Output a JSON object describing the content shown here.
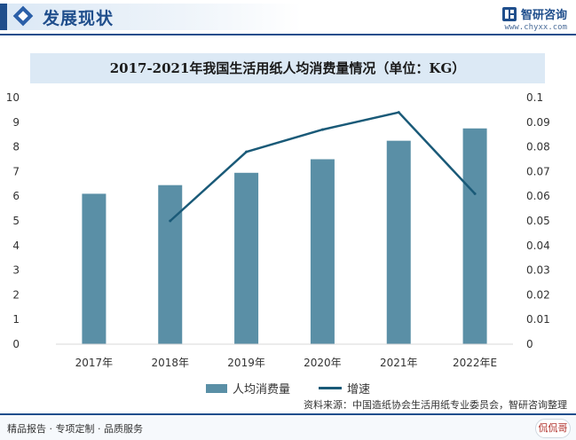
{
  "header": {
    "title": "发展现状"
  },
  "brand": {
    "name": "智研咨询",
    "url": "www.chyxx.com"
  },
  "footer": {
    "left_text": "精品报告 · 专项定制 · 品质服务",
    "source_text": "资料来源：中国造纸协会生活用纸专业委员会，智研咨询整理",
    "badge_text": "侃侃哥"
  },
  "colors": {
    "bar": "#5a8fa6",
    "line": "#1a5a78",
    "accent": "#1f4e8c"
  },
  "chart_data": {
    "type": "bar",
    "title": "2017-2021年我国生活用纸人均消费量情况（单位：KG）",
    "categories": [
      "2017年",
      "2018年",
      "2019年",
      "2020年",
      "2021年",
      "2022年E"
    ],
    "series": [
      {
        "name": "人均消费量",
        "type": "bar",
        "axis": "left",
        "values": [
          6.1,
          6.45,
          6.95,
          7.5,
          8.25,
          8.75
        ]
      },
      {
        "name": "增速",
        "type": "line",
        "axis": "right",
        "values": [
          null,
          0.05,
          0.078,
          0.087,
          0.094,
          0.061
        ]
      }
    ],
    "ylim_left": [
      0,
      10
    ],
    "yticks_left": [
      "0",
      "1",
      "2",
      "3",
      "4",
      "5",
      "6",
      "7",
      "8",
      "9",
      "10"
    ],
    "ylim_right": [
      0,
      0.1
    ],
    "yticks_right": [
      "0",
      "0.01",
      "0.02",
      "0.03",
      "0.04",
      "0.05",
      "0.06",
      "0.07",
      "0.08",
      "0.09",
      "0.1"
    ],
    "grid": false,
    "legend_position": "bottom"
  }
}
